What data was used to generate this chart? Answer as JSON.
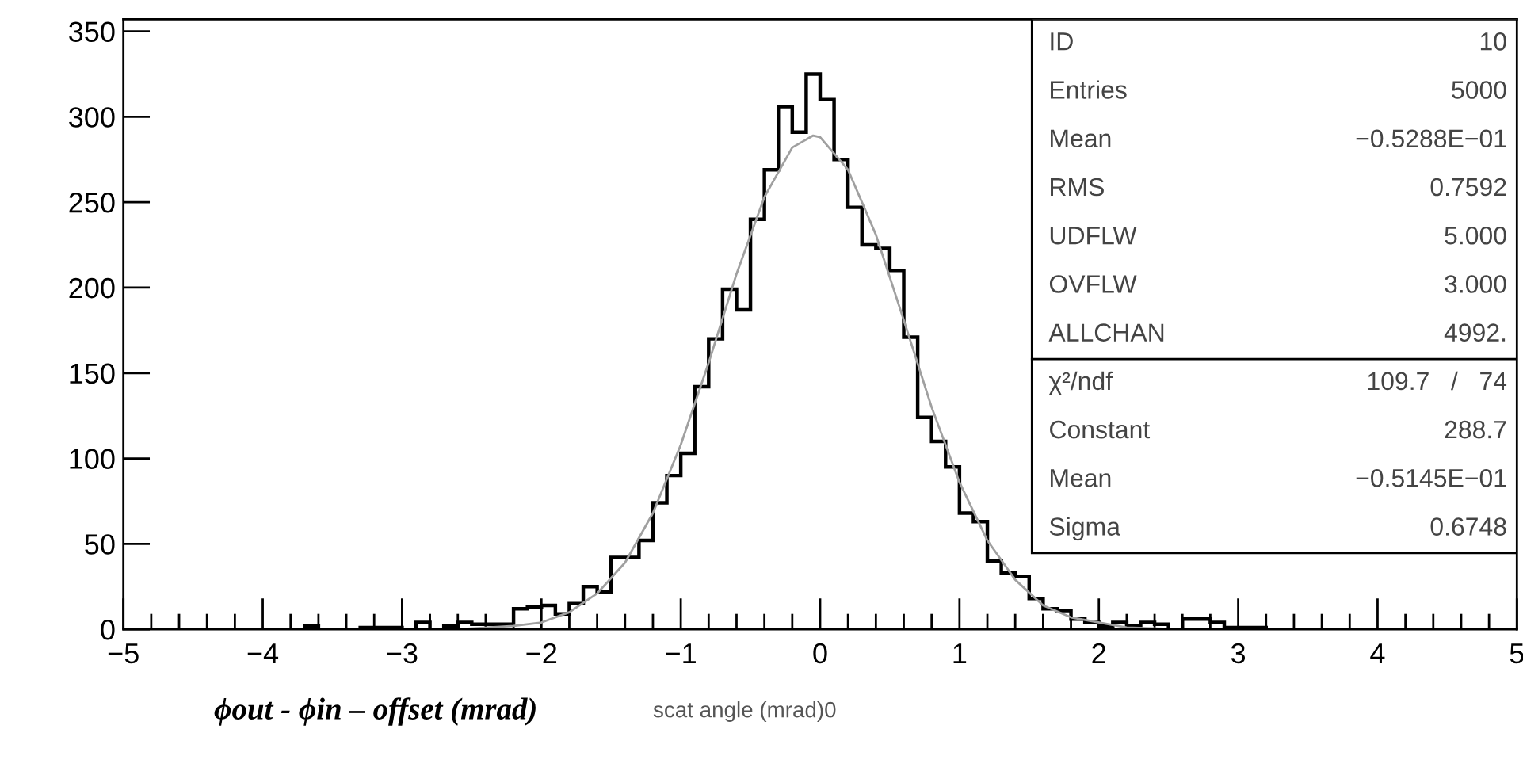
{
  "chart_data": {
    "type": "histogram",
    "xlabel": "scat angle (mrad)0",
    "bins": [
      -5.0,
      -4.9,
      -4.8,
      -4.7,
      -4.6,
      -4.5,
      -4.4,
      -4.3,
      -4.2,
      -4.1,
      -4.0,
      -3.9,
      -3.8,
      -3.7,
      -3.6,
      -3.5,
      -3.4,
      -3.3,
      -3.2,
      -3.1,
      -3.0,
      -2.9,
      -2.8,
      -2.7,
      -2.6,
      -2.5,
      -2.4,
      -2.3,
      -2.2,
      -2.1,
      -2.0,
      -1.9,
      -1.8,
      -1.7,
      -1.6,
      -1.5,
      -1.4,
      -1.3,
      -1.2,
      -1.1,
      -1.0,
      -0.9,
      -0.8,
      -0.7,
      -0.6,
      -0.5,
      -0.4,
      -0.3,
      -0.2,
      -0.1,
      0.0,
      0.1,
      0.2,
      0.3,
      0.4,
      0.5,
      0.6,
      0.7,
      0.8,
      0.9,
      1.0,
      1.1,
      1.2,
      1.3,
      1.4,
      1.5,
      1.6,
      1.7,
      1.8,
      1.9,
      2.0,
      2.1,
      2.2,
      2.3,
      2.4,
      2.5,
      2.6,
      2.7,
      2.8,
      2.9,
      3.0,
      3.1,
      3.2,
      3.3,
      3.4,
      3.5,
      3.6,
      3.7,
      3.8,
      3.9,
      4.0,
      4.1,
      4.2,
      4.3,
      4.4,
      4.5,
      4.6,
      4.7,
      4.8,
      4.9,
      5.0
    ],
    "values": [
      0,
      0,
      0,
      0,
      0,
      0,
      0,
      0,
      0,
      0,
      0,
      0,
      0,
      2,
      0,
      0,
      0,
      1,
      1,
      1,
      0,
      4,
      0,
      2,
      4,
      3,
      3,
      3,
      12,
      13,
      14,
      9,
      15,
      25,
      22,
      42,
      42,
      52,
      74,
      90,
      103,
      142,
      170,
      199,
      187,
      240,
      269,
      306,
      291,
      325,
      310,
      275,
      247,
      225,
      223,
      210,
      171,
      124,
      110,
      95,
      68,
      63,
      40,
      33,
      31,
      18,
      12,
      11,
      6,
      4,
      2,
      4,
      2,
      4,
      3,
      0,
      6,
      6,
      4,
      1,
      1,
      1,
      0,
      0,
      0,
      0,
      0,
      0,
      0,
      0,
      0,
      0,
      0,
      0,
      0,
      0,
      0,
      0,
      0,
      0
    ],
    "color": "#000000",
    "series": [
      {
        "type": "line",
        "color": "#a0a0a0",
        "x": [
          -5.0,
          -2.6,
          -2.2,
          -2.0,
          -1.8,
          -1.6,
          -1.4,
          -1.2,
          -1.0,
          -0.8,
          -0.6,
          -0.4,
          -0.2,
          -0.05,
          0.0,
          0.2,
          0.4,
          0.6,
          0.8,
          1.0,
          1.2,
          1.4,
          1.6,
          1.8,
          2.2,
          2.6,
          5.0
        ],
        "values": [
          0,
          0,
          2,
          4,
          10,
          21,
          39,
          68,
          108,
          156,
          208,
          253,
          282,
          289,
          288,
          269,
          231,
          181,
          130,
          86,
          52,
          29,
          14,
          7,
          1,
          0,
          0
        ]
      }
    ],
    "xlim": [
      -5,
      5
    ],
    "xticks": [
      -5,
      -4,
      -3,
      -2,
      -1,
      0,
      1,
      2,
      3,
      4,
      5
    ],
    "ylim": [
      0,
      357
    ],
    "yticks": [
      0,
      50,
      100,
      150,
      200,
      250,
      300,
      350
    ],
    "grid": false,
    "legend": false,
    "annotations": [
      "ϕout - ϕin – offset (mrad)",
      "ID",
      "10",
      "Entries",
      "5000",
      "Mean",
      "−0.5288E−01",
      "RMS",
      "0.7592",
      "UDFLW",
      "5.000",
      "OVFLW",
      "3.000",
      "ALLCHAN",
      "4992.",
      "χ²/ndf",
      "109.7   /   74",
      "Constant",
      "288.7",
      "Mean",
      "−0.5145E−01",
      "Sigma",
      "0.6748"
    ]
  }
}
